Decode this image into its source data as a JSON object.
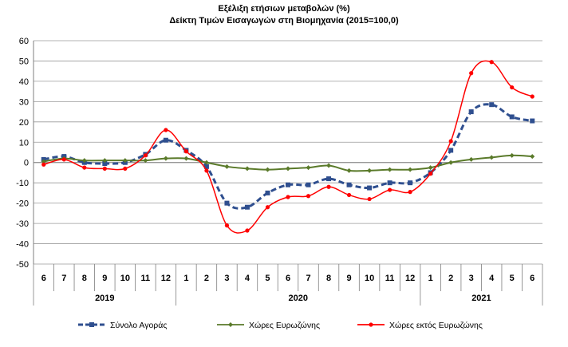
{
  "chart_data": {
    "type": "line",
    "title": "Εξέλιξη ετήσιων μεταβολών (%)",
    "subtitle": "Δείκτη Τιμών Εισαγωγών στη Βιομηχανία (2015=100,0)",
    "ylim": [
      -50,
      60
    ],
    "yticks": [
      60,
      50,
      40,
      30,
      20,
      10,
      0,
      -10,
      -20,
      -30,
      -40,
      -50
    ],
    "grid": true,
    "legend_position": "bottom",
    "categories": [
      "6",
      "7",
      "8",
      "9",
      "10",
      "11",
      "12",
      "1",
      "2",
      "3",
      "4",
      "5",
      "6",
      "7",
      "8",
      "9",
      "10",
      "11",
      "12",
      "1",
      "2",
      "3",
      "4",
      "5",
      "6"
    ],
    "years": [
      {
        "label": "2019",
        "months": 7
      },
      {
        "label": "2020",
        "months": 12
      },
      {
        "label": "2021",
        "months": 6
      }
    ],
    "series": [
      {
        "name": "Σύνολο Αγοράς",
        "color": "#2f4f8f",
        "style": "dashed-square",
        "values": [
          1.5,
          3,
          0,
          -0.5,
          0,
          4,
          11,
          6,
          -2,
          -20,
          -22,
          -15,
          -11,
          -11,
          -8,
          -11,
          -12.5,
          -10,
          -10,
          -5,
          6,
          25,
          28.5,
          22.5,
          20.5
        ]
      },
      {
        "name": "Χώρες Ευρωζώνης",
        "color": "#5a7a2a",
        "style": "solid-diamond",
        "values": [
          0.5,
          2,
          1,
          1,
          1,
          1,
          2,
          2,
          0,
          -2,
          -3,
          -3.5,
          -3,
          -2.5,
          -1.5,
          -4,
          -4,
          -3.5,
          -3.5,
          -2.5,
          0,
          1.5,
          2.5,
          3.5,
          3
        ]
      },
      {
        "name": "Χώρες εκτός Ευρωζώνης",
        "color": "#ff0000",
        "style": "solid-dot",
        "values": [
          -1,
          1.5,
          -2.5,
          -3,
          -3,
          3.5,
          16,
          5.5,
          -4,
          -31,
          -33.5,
          -22,
          -17,
          -16.5,
          -12,
          -16,
          -18,
          -13.5,
          -14.5,
          -5.5,
          10.5,
          44,
          49.5,
          37,
          32.5
        ]
      }
    ]
  }
}
